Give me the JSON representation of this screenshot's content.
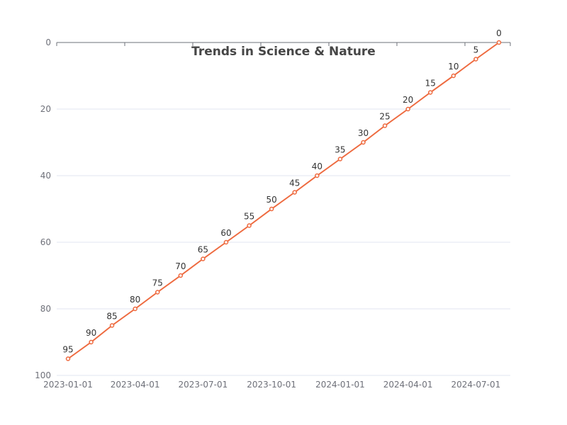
{
  "chart_data": {
    "type": "line",
    "title": "Trends in Science & Nature",
    "xlabel": "",
    "ylabel": "",
    "x_ticks": [
      "2023-01-01",
      "2023-04-01",
      "2023-07-01",
      "2023-10-01",
      "2024-01-01",
      "2024-04-01",
      "2024-07-01"
    ],
    "y_ticks": [
      0,
      20,
      40,
      60,
      80,
      100
    ],
    "ylim": [
      0,
      100
    ],
    "y_inverted": true,
    "grid": true,
    "legend": "none",
    "series": [
      {
        "color": "#ee6a3f",
        "x": [
          "2023-01-01",
          "2023-02-01",
          "2023-03-01",
          "2023-04-01",
          "2023-05-01",
          "2023-06-01",
          "2023-07-01",
          "2023-08-01",
          "2023-09-01",
          "2023-10-01",
          "2023-11-01",
          "2023-12-01",
          "2024-01-01",
          "2024-02-01",
          "2024-03-01",
          "2024-04-01",
          "2024-05-01",
          "2024-06-01",
          "2024-07-01",
          "2024-08-01"
        ],
        "values": [
          95,
          90,
          85,
          80,
          75,
          70,
          65,
          60,
          55,
          50,
          45,
          40,
          35,
          30,
          25,
          20,
          15,
          10,
          5,
          0
        ]
      }
    ]
  }
}
